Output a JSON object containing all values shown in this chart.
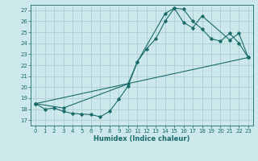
{
  "bg_color": "#cce8eb",
  "grid_color": "#aacdd4",
  "line_color": "#1a6b6b",
  "marker_color": "#1a6b6b",
  "xlabel": "Humidex (Indice chaleur)",
  "xlim": [
    -0.5,
    23.5
  ],
  "ylim": [
    16.5,
    27.5
  ],
  "yticks": [
    17,
    18,
    19,
    20,
    21,
    22,
    23,
    24,
    25,
    26,
    27
  ],
  "xticks": [
    0,
    1,
    2,
    3,
    4,
    5,
    6,
    7,
    8,
    9,
    10,
    11,
    12,
    13,
    14,
    15,
    16,
    17,
    18,
    19,
    20,
    21,
    22,
    23
  ],
  "line1_x": [
    0,
    1,
    2,
    3,
    4,
    5,
    6,
    7,
    8,
    9,
    10,
    11,
    12,
    13,
    14,
    15,
    16,
    17,
    18,
    19,
    20,
    21,
    22,
    23
  ],
  "line1_y": [
    18.5,
    18.0,
    18.1,
    17.8,
    17.6,
    17.55,
    17.5,
    17.3,
    17.8,
    18.9,
    20.1,
    22.3,
    23.5,
    24.4,
    26.0,
    27.2,
    27.1,
    26.0,
    25.3,
    24.4,
    24.2,
    24.9,
    24.0,
    22.7
  ],
  "line2_x": [
    0,
    3,
    10,
    11,
    14,
    15,
    16,
    17,
    18,
    21,
    22,
    23
  ],
  "line2_y": [
    18.5,
    18.1,
    20.3,
    22.3,
    26.7,
    27.2,
    25.9,
    25.4,
    26.5,
    24.3,
    24.9,
    22.7
  ],
  "line3_x": [
    0,
    23
  ],
  "line3_y": [
    18.5,
    22.7
  ],
  "figsize": [
    3.2,
    2.0
  ],
  "dpi": 100
}
